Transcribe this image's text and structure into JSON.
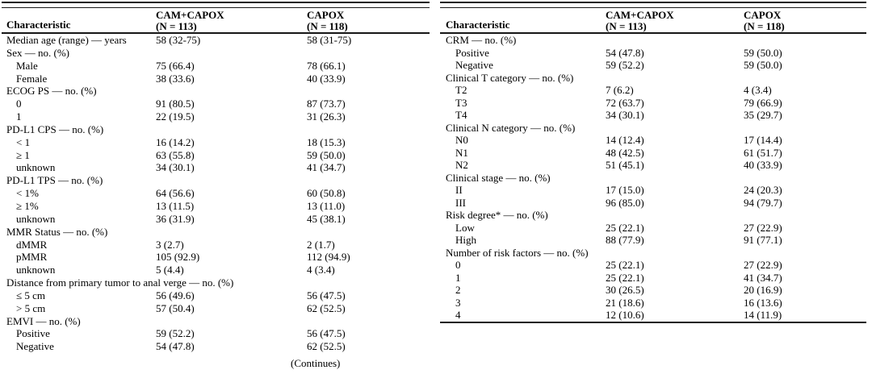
{
  "page": {
    "background_color": "#ffffff",
    "text_color": "#000000",
    "rule_color": "#161616"
  },
  "table": {
    "continues_note": "(Continues)",
    "header": {
      "characteristic": "Characteristic",
      "arm1_name": "CAM+CAPOX",
      "arm1_n": "(N = 113)",
      "arm2_name": "CAPOX",
      "arm2_n": "(N = 118)"
    },
    "left_panel": {
      "rows": [
        {
          "label": "Median age (range) — years",
          "indent": false,
          "cam_capox": "58 (32-75)",
          "capox": "58 (31-75)"
        },
        {
          "label": "Sex — no. (%)",
          "indent": false,
          "cam_capox": "",
          "capox": ""
        },
        {
          "label": "Male",
          "indent": true,
          "cam_capox": "75 (66.4)",
          "capox": "78 (66.1)"
        },
        {
          "label": "Female",
          "indent": true,
          "cam_capox": "38 (33.6)",
          "capox": "40 (33.9)"
        },
        {
          "label": "ECOG PS — no. (%)",
          "indent": false,
          "cam_capox": "",
          "capox": ""
        },
        {
          "label": "0",
          "indent": true,
          "cam_capox": "91 (80.5)",
          "capox": "87 (73.7)"
        },
        {
          "label": "1",
          "indent": true,
          "cam_capox": "22 (19.5)",
          "capox": "31 (26.3)"
        },
        {
          "label": "PD-L1 CPS — no. (%)",
          "indent": false,
          "cam_capox": "",
          "capox": ""
        },
        {
          "label": "< 1",
          "indent": true,
          "cam_capox": "16 (14.2)",
          "capox": "18 (15.3)"
        },
        {
          "label": "≥ 1",
          "indent": true,
          "cam_capox": "63 (55.8)",
          "capox": "59 (50.0)"
        },
        {
          "label": "unknown",
          "indent": true,
          "cam_capox": "34 (30.1)",
          "capox": "41 (34.7)"
        },
        {
          "label": "PD-L1 TPS — no. (%)",
          "indent": false,
          "cam_capox": "",
          "capox": ""
        },
        {
          "label": "< 1%",
          "indent": true,
          "cam_capox": "64 (56.6)",
          "capox": "60 (50.8)"
        },
        {
          "label": "≥ 1%",
          "indent": true,
          "cam_capox": "13 (11.5)",
          "capox": "13 (11.0)"
        },
        {
          "label": "unknown",
          "indent": true,
          "cam_capox": "36 (31.9)",
          "capox": "45 (38.1)"
        },
        {
          "label": "MMR Status — no. (%)",
          "indent": false,
          "cam_capox": "",
          "capox": ""
        },
        {
          "label": "dMMR",
          "indent": true,
          "cam_capox": "3 (2.7)",
          "capox": "2 (1.7)"
        },
        {
          "label": "pMMR",
          "indent": true,
          "cam_capox": "105 (92.9)",
          "capox": "112 (94.9)"
        },
        {
          "label": "unknown",
          "indent": true,
          "cam_capox": "5 (4.4)",
          "capox": "4 (3.4)"
        },
        {
          "label": "Distance from primary tumor to anal verge — no. (%)",
          "indent": false,
          "cam_capox": "",
          "capox": ""
        },
        {
          "label": "≤ 5 cm",
          "indent": true,
          "cam_capox": "56 (49.6)",
          "capox": "56 (47.5)"
        },
        {
          "label": "> 5 cm",
          "indent": true,
          "cam_capox": "57 (50.4)",
          "capox": "62 (52.5)"
        },
        {
          "label": "EMVI — no. (%)",
          "indent": false,
          "cam_capox": "",
          "capox": ""
        },
        {
          "label": "Positive",
          "indent": true,
          "cam_capox": "59 (52.2)",
          "capox": "56 (47.5)"
        },
        {
          "label": "Negative",
          "indent": true,
          "cam_capox": "54 (47.8)",
          "capox": "62 (52.5)"
        }
      ]
    },
    "right_panel": {
      "rows": [
        {
          "label": "CRM — no. (%)",
          "indent": false,
          "cam_capox": "",
          "capox": ""
        },
        {
          "label": "Positive",
          "indent": true,
          "cam_capox": "54 (47.8)",
          "capox": "59 (50.0)"
        },
        {
          "label": "Negative",
          "indent": true,
          "cam_capox": "59 (52.2)",
          "capox": "59 (50.0)"
        },
        {
          "label": "Clinical T category — no. (%)",
          "indent": false,
          "cam_capox": "",
          "capox": ""
        },
        {
          "label": "T2",
          "indent": true,
          "cam_capox": "7 (6.2)",
          "capox": "4 (3.4)"
        },
        {
          "label": "T3",
          "indent": true,
          "cam_capox": "72 (63.7)",
          "capox": "79 (66.9)"
        },
        {
          "label": "T4",
          "indent": true,
          "cam_capox": "34 (30.1)",
          "capox": "35 (29.7)"
        },
        {
          "label": "Clinical N category — no. (%)",
          "indent": false,
          "cam_capox": "",
          "capox": ""
        },
        {
          "label": "N0",
          "indent": true,
          "cam_capox": "14 (12.4)",
          "capox": "17 (14.4)"
        },
        {
          "label": "N1",
          "indent": true,
          "cam_capox": "48 (42.5)",
          "capox": "61 (51.7)"
        },
        {
          "label": "N2",
          "indent": true,
          "cam_capox": "51 (45.1)",
          "capox": "40 (33.9)"
        },
        {
          "label": "Clinical stage — no. (%)",
          "indent": false,
          "cam_capox": "",
          "capox": ""
        },
        {
          "label": "II",
          "indent": true,
          "cam_capox": "17 (15.0)",
          "capox": "24 (20.3)"
        },
        {
          "label": "III",
          "indent": true,
          "cam_capox": "96 (85.0)",
          "capox": "94 (79.7)"
        },
        {
          "label": "Risk degree* — no. (%)",
          "indent": false,
          "cam_capox": "",
          "capox": ""
        },
        {
          "label": "Low",
          "indent": true,
          "cam_capox": "25 (22.1)",
          "capox": "27 (22.9)"
        },
        {
          "label": "High",
          "indent": true,
          "cam_capox": "88 (77.9)",
          "capox": "91 (77.1)"
        },
        {
          "label": "Number of risk factors — no. (%)",
          "indent": false,
          "cam_capox": "",
          "capox": ""
        },
        {
          "label": "0",
          "indent": true,
          "cam_capox": "25 (22.1)",
          "capox": "27 (22.9)"
        },
        {
          "label": "1",
          "indent": true,
          "cam_capox": "25 (22.1)",
          "capox": "41 (34.7)"
        },
        {
          "label": "2",
          "indent": true,
          "cam_capox": "30 (26.5)",
          "capox": "20 (16.9)"
        },
        {
          "label": "3",
          "indent": true,
          "cam_capox": "21 (18.6)",
          "capox": "16 (13.6)"
        },
        {
          "label": "4",
          "indent": true,
          "cam_capox": "12 (10.6)",
          "capox": "14 (11.9)"
        }
      ]
    }
  }
}
